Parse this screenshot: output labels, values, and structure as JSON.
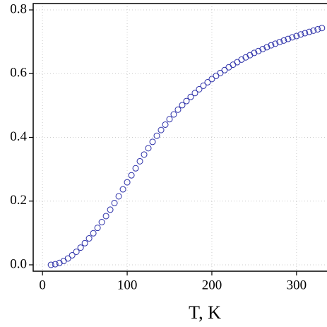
{
  "chart_data": {
    "type": "scatter",
    "xlabel": "T, K",
    "color": "#2b2fa8",
    "x": [
      10,
      15,
      20,
      25,
      30,
      35,
      40,
      45,
      50,
      55,
      60,
      65,
      70,
      75,
      80,
      85,
      90,
      95,
      100,
      105,
      110,
      115,
      120,
      125,
      130,
      135,
      140,
      145,
      150,
      155,
      160,
      165,
      170,
      175,
      180,
      185,
      190,
      195,
      200,
      205,
      210,
      215,
      220,
      225,
      230,
      235,
      240,
      245,
      250,
      255,
      260,
      265,
      270,
      275,
      280,
      285,
      290,
      295,
      300,
      305,
      310,
      315,
      320,
      325,
      330
    ],
    "values": [
      0.0,
      0.002,
      0.006,
      0.012,
      0.02,
      0.03,
      0.041,
      0.054,
      0.068,
      0.083,
      0.099,
      0.116,
      0.134,
      0.153,
      0.173,
      0.194,
      0.215,
      0.237,
      0.259,
      0.281,
      0.303,
      0.325,
      0.346,
      0.366,
      0.386,
      0.405,
      0.423,
      0.44,
      0.457,
      0.472,
      0.487,
      0.501,
      0.514,
      0.527,
      0.539,
      0.551,
      0.562,
      0.573,
      0.583,
      0.593,
      0.602,
      0.611,
      0.62,
      0.628,
      0.636,
      0.644,
      0.651,
      0.658,
      0.665,
      0.671,
      0.677,
      0.683,
      0.689,
      0.694,
      0.699,
      0.704,
      0.709,
      0.714,
      0.718,
      0.723,
      0.727,
      0.731,
      0.735,
      0.739,
      0.743
    ],
    "xlim": [
      -11,
      336
    ],
    "ylim": [
      -0.02,
      0.82
    ],
    "xticks": [
      0,
      100,
      200,
      300
    ],
    "yticks": [
      {
        "value": 0,
        "label": "0.0"
      },
      0.2,
      0.4,
      0.6,
      0.8
    ],
    "grid": true
  }
}
